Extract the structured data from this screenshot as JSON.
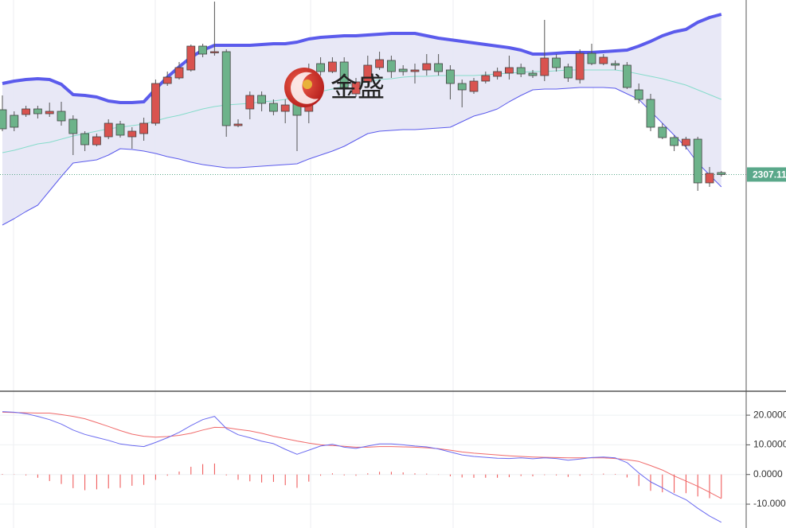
{
  "watermark": "金盛",
  "chart_data": [
    {
      "type": "candlestick",
      "ylim": [
        2253,
        2351
      ],
      "last_price": 2307.11,
      "up_color": "#d9534f",
      "down_color": "#6db38a",
      "band_fill": "#e6e6f5",
      "upper_color": "#5b5bec",
      "middle_color": "#86dccb",
      "lower_color": "#5b5bec",
      "last_color": "#5aa88a",
      "open": [
        2323.4,
        2322,
        2322.2,
        2323.6,
        2322.4,
        2323,
        2321,
        2317.4,
        2314.6,
        2316.6,
        2319.8,
        2316.6,
        2317.4,
        2320,
        2330,
        2331.4,
        2333.4,
        2339.4,
        2337.8,
        2338,
        2319.4,
        2323.6,
        2327,
        2325,
        2323,
        2330,
        2323,
        2335,
        2333,
        2335.4,
        2327.4,
        2330.4,
        2334,
        2335.8,
        2333.6,
        2333,
        2333.4,
        2335,
        2333.4,
        2330,
        2328,
        2330.6,
        2331.8,
        2332.6,
        2334,
        2332.6,
        2332,
        2336.4,
        2334.2,
        2331,
        2337.6,
        2335,
        2335,
        2334.6,
        2328.4,
        2326,
        2319,
        2316.4,
        2314.4,
        2316,
        2305,
        2307.6
      ],
      "high": [
        2327,
        2323,
        2324.4,
        2324.4,
        2325.2,
        2325.4,
        2322,
        2318,
        2317.4,
        2321,
        2320.6,
        2319,
        2321.4,
        2331,
        2333,
        2335.4,
        2339.8,
        2340,
        2350.6,
        2338.6,
        2321,
        2328,
        2328,
        2326,
        2326,
        2331,
        2335,
        2336.6,
        2336.6,
        2336.6,
        2331.4,
        2337,
        2338,
        2337,
        2334.6,
        2335,
        2337.4,
        2337.4,
        2334.6,
        2331,
        2331.4,
        2333,
        2334,
        2337,
        2335,
        2333.4,
        2346,
        2337.4,
        2335,
        2338.6,
        2340,
        2337.4,
        2335.8,
        2335.4,
        2330,
        2327.4,
        2320,
        2317,
        2316.6,
        2316.6,
        2309,
        2308
      ],
      "low": [
        2318,
        2318,
        2321.6,
        2321.2,
        2321.6,
        2319.4,
        2312,
        2313,
        2314.2,
        2316,
        2316.4,
        2313.6,
        2315.6,
        2319.4,
        2329.4,
        2331,
        2333,
        2336.6,
        2337,
        2316.6,
        2319,
        2321,
        2323,
        2322,
        2320,
        2313,
        2320,
        2332,
        2332.6,
        2328,
        2326.6,
        2329.4,
        2333.4,
        2331.4,
        2332,
        2330,
        2332,
        2332,
        2326,
        2324,
        2327.4,
        2330,
        2331,
        2331,
        2331.6,
        2331.4,
        2330.6,
        2333,
        2330.4,
        2330,
        2334.6,
        2334.6,
        2333.4,
        2328.6,
        2325,
        2318,
        2316,
        2313,
        2313.4,
        2303,
        2304,
        2306.6
      ],
      "close": [
        2318.6,
        2319,
        2323.6,
        2322.4,
        2323,
        2320.6,
        2317.4,
        2314.6,
        2316.6,
        2320,
        2317,
        2318,
        2320,
        2330,
        2331.6,
        2334,
        2339.4,
        2337.4,
        2338,
        2319.4,
        2319.8,
        2327,
        2325,
        2323,
        2324.6,
        2322,
        2333.4,
        2333,
        2335.4,
        2329,
        2330.4,
        2334.6,
        2336,
        2333,
        2333,
        2333.4,
        2335,
        2333,
        2330,
        2328.4,
        2330.6,
        2332,
        2333,
        2334,
        2332.4,
        2332,
        2336.4,
        2334,
        2331.4,
        2337.6,
        2335,
        2336.6,
        2334.6,
        2329,
        2326,
        2319,
        2316.4,
        2314.4,
        2316,
        2305,
        2307.4,
        2307.11
      ],
      "upper": [
        2330,
        2330.6,
        2331,
        2331.2,
        2331,
        2329.8,
        2327.2,
        2327,
        2326.6,
        2325.6,
        2325.2,
        2325.2,
        2325.4,
        2328.6,
        2331.6,
        2334.2,
        2336.6,
        2338.4,
        2339.6,
        2339.6,
        2339.6,
        2339.6,
        2339.8,
        2340,
        2340,
        2340.4,
        2341.2,
        2341.6,
        2341.8,
        2342,
        2342,
        2342.2,
        2342.4,
        2342.6,
        2342.6,
        2342.6,
        2342,
        2341.4,
        2341,
        2340.6,
        2340.2,
        2339.8,
        2339.4,
        2339,
        2338.4,
        2337.4,
        2337.4,
        2337.6,
        2337.8,
        2337.8,
        2337.8,
        2338,
        2338.2,
        2338.4,
        2339.4,
        2340.6,
        2342,
        2343,
        2343.6,
        2345.4,
        2346.6,
        2347.4
      ],
      "middle": [
        2312.6,
        2313.2,
        2314,
        2314.8,
        2315.2,
        2316,
        2316.8,
        2317.4,
        2318,
        2318.6,
        2319,
        2319.4,
        2319.8,
        2320.6,
        2321.4,
        2322,
        2322.8,
        2323.6,
        2324.2,
        2324.6,
        2324.8,
        2325,
        2325.4,
        2325.6,
        2326,
        2326.6,
        2327.4,
        2328,
        2328.6,
        2329.4,
        2329.8,
        2330.4,
        2331,
        2331.2,
        2331.6,
        2331.8,
        2331.8,
        2332,
        2332,
        2332,
        2332,
        2332.2,
        2332.4,
        2332.6,
        2332.8,
        2333,
        2333,
        2333.2,
        2333.4,
        2333.4,
        2333.4,
        2333.4,
        2333.4,
        2333,
        2332.4,
        2331.8,
        2331.2,
        2330.4,
        2329.6,
        2328.4,
        2327.2,
        2326
      ],
      "lower": [
        2294.4,
        2296,
        2297.8,
        2299.4,
        2303,
        2306.6,
        2310,
        2310.4,
        2310.8,
        2312,
        2313.6,
        2313.4,
        2313,
        2312.4,
        2311.6,
        2311,
        2310.2,
        2309.6,
        2309.2,
        2308.8,
        2308.8,
        2309,
        2309.2,
        2309.4,
        2309.6,
        2309.8,
        2311,
        2312,
        2313,
        2314.2,
        2315.8,
        2317.4,
        2318,
        2318.2,
        2318.4,
        2318.4,
        2318.6,
        2318.8,
        2319,
        2320.4,
        2321.8,
        2322.6,
        2323.6,
        2325.4,
        2327,
        2328.4,
        2328.6,
        2328.6,
        2328.8,
        2329,
        2329,
        2329,
        2328.8,
        2327.4,
        2326,
        2323,
        2320,
        2317,
        2314,
        2310,
        2307,
        2304
      ]
    },
    {
      "type": "macd",
      "ylim": [
        -17.5,
        27.8
      ],
      "yticks": [
        {
          "value": 20,
          "label": "20.0000"
        },
        {
          "value": 10,
          "label": "10.0000"
        },
        {
          "value": 0,
          "label": "0.0000"
        },
        {
          "value": -10,
          "label": "-10.0000"
        }
      ],
      "dif_color": "#6a6af0",
      "dea_color": "#f06a6a",
      "hist_color": "#ee4d4d",
      "dif": [
        21.2,
        21,
        20.5,
        19.6,
        18.5,
        17,
        15,
        13.5,
        12.5,
        11.5,
        10.3,
        9.8,
        9.4,
        10.8,
        12.4,
        14.2,
        16.5,
        18.5,
        19.6,
        15.5,
        13.4,
        12.4,
        11.2,
        10.4,
        8.5,
        6.8,
        8.2,
        9.6,
        10.2,
        9.2,
        8.8,
        9.6,
        10.3,
        10.3,
        10,
        9.6,
        9.3,
        8.6,
        7.6,
        6.6,
        6.1,
        5.8,
        5.5,
        5.4,
        5.6,
        5.3,
        5.6,
        5.4,
        4.8,
        5.2,
        5.7,
        5.9,
        5.6,
        4,
        0.5,
        -2.5,
        -4.5,
        -6.7,
        -8.5,
        -11.4,
        -14,
        -16.1
      ],
      "dea": [
        21,
        20.9,
        20.8,
        20.7,
        20.7,
        20.2,
        19.6,
        18.8,
        17.5,
        16.2,
        14.8,
        13.6,
        12.9,
        12.6,
        12.8,
        13.2,
        13.9,
        15,
        15.9,
        15.8,
        15.2,
        14.7,
        13.9,
        12.9,
        12.1,
        11.3,
        10.6,
        10,
        9.8,
        9.5,
        9.2,
        9.2,
        9.4,
        9.4,
        9.3,
        9.2,
        9,
        8.7,
        8.2,
        7.6,
        7.2,
        6.9,
        6.6,
        6.3,
        6.1,
        5.9,
        5.8,
        5.7,
        5.6,
        5.6,
        5.6,
        5.6,
        5.4,
        5,
        4.4,
        3,
        1.5,
        -0.5,
        -2.2,
        -4,
        -6,
        -8.1
      ],
      "hist": [
        0.2,
        0.1,
        -0.3,
        -1.1,
        -2.2,
        -3.2,
        -4.6,
        -5.3,
        -5,
        -4.7,
        -4.5,
        -3.8,
        -3.5,
        -1.8,
        -0.4,
        1,
        2.6,
        3.5,
        3.7,
        -0.3,
        -1.8,
        -2.3,
        -2.7,
        -2.5,
        -3.6,
        -4.5,
        -2.4,
        -0.4,
        0.4,
        -0.3,
        -0.4,
        0.4,
        0.9,
        0.9,
        0.7,
        0.4,
        0.3,
        -0.1,
        -0.6,
        -1,
        -1.1,
        -1.1,
        -1.1,
        -0.9,
        -0.5,
        -0.6,
        -0.2,
        -0.3,
        -0.8,
        -0.4,
        0.1,
        0.3,
        0.2,
        -1,
        -3.9,
        -5.5,
        -6,
        -6.2,
        -6.3,
        -7.4,
        -8,
        -8
      ]
    }
  ]
}
